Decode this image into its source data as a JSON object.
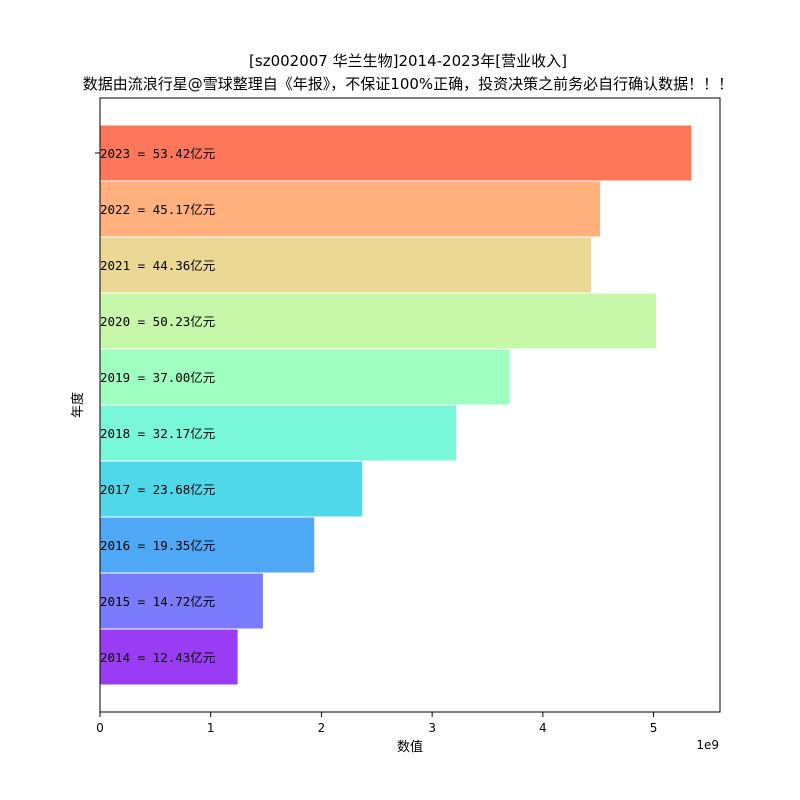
{
  "chart_data": {
    "type": "bar",
    "orientation": "horizontal",
    "title": "[sz002007 华兰生物]2014-2023年[营业收入]",
    "subtitle": "数据由流浪行星@雪球整理自《年报》，不保证100%正确，投资决策之前务必自行确认数据！！！",
    "xlabel": "数值",
    "ylabel": "年度",
    "x_offset_label": "1e9",
    "xlim": [
      0,
      5.6
    ],
    "xticks": [
      0,
      1,
      2,
      3,
      4,
      5
    ],
    "categories": [
      "2014",
      "2015",
      "2016",
      "2017",
      "2018",
      "2019",
      "2020",
      "2021",
      "2022",
      "2023"
    ],
    "values": [
      1.243,
      1.472,
      1.935,
      2.368,
      3.217,
      3.7,
      5.023,
      4.436,
      4.517,
      5.342
    ],
    "bar_labels": [
      "2014 = 12.43亿元",
      "2015 = 14.72亿元",
      "2016 = 19.35亿元",
      "2017 = 23.68亿元",
      "2018 = 32.17亿元",
      "2019 = 37.00亿元",
      "2020 = 50.23亿元",
      "2021 = 44.36亿元",
      "2022 = 45.17亿元",
      "2023 = 53.42亿元"
    ],
    "colors": [
      "#9b3cf5",
      "#7a7cfd",
      "#4fa8f5",
      "#4fd8ea",
      "#79f7d9",
      "#9fffc0",
      "#c7f7a8",
      "#ead894",
      "#ffb07c",
      "#ff775a"
    ],
    "grid": false
  }
}
